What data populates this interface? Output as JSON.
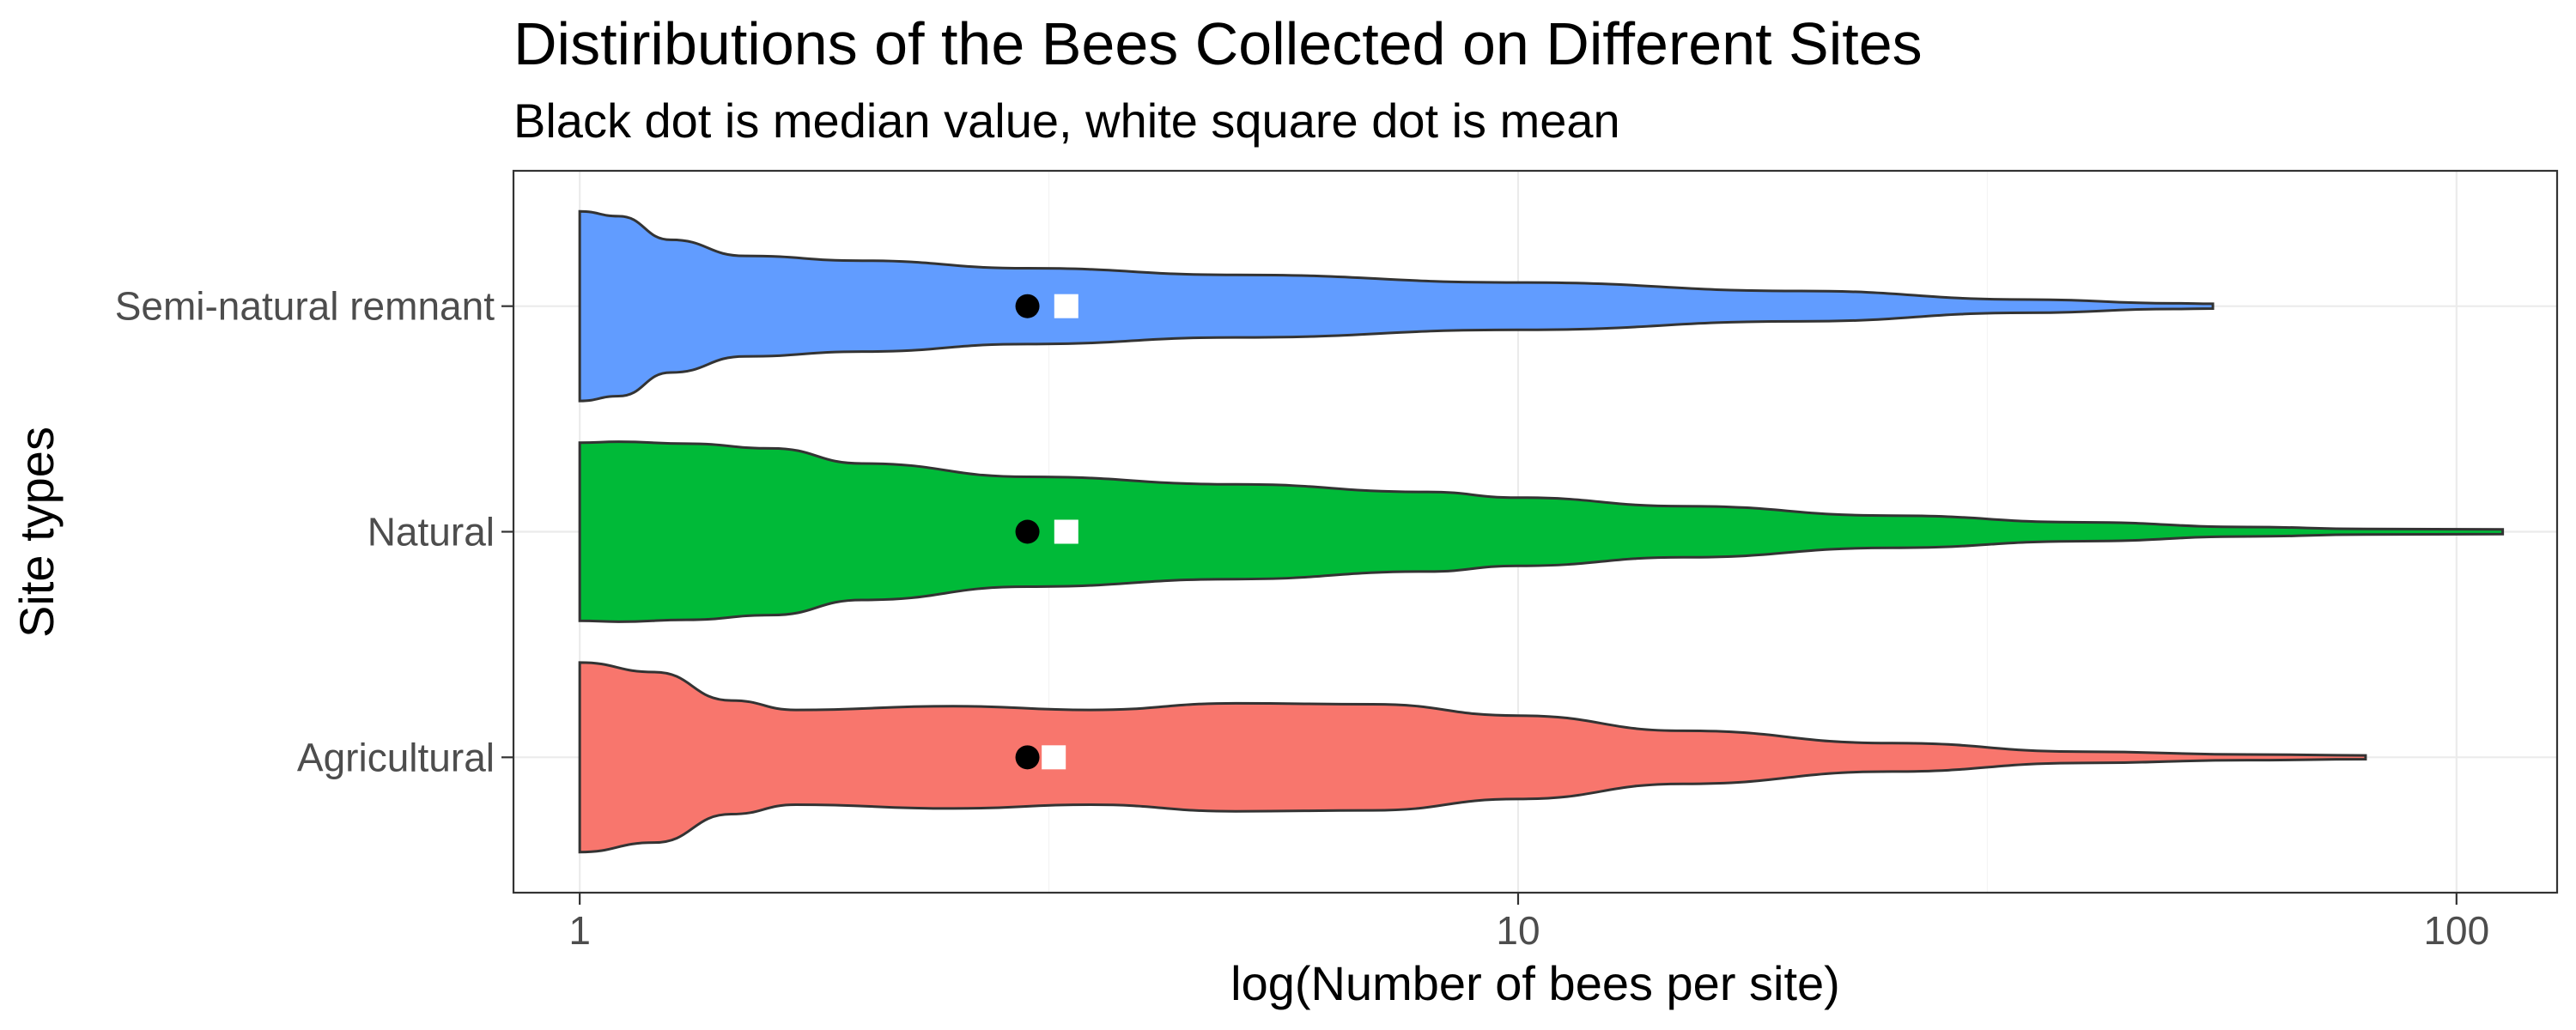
{
  "chart_data": {
    "type": "violin",
    "title": "Distiributions of the Bees Collected on Different Sites",
    "subtitle": "Black dot is median value, white square dot is mean",
    "xlabel": "log(Number of bees per site)",
    "ylabel": "Site types",
    "x_scale": "log10",
    "xlim": [
      0.85,
      128
    ],
    "x_ticks": [
      1,
      10,
      100
    ],
    "x_tick_labels": [
      "1",
      "10",
      "100"
    ],
    "categories": [
      "Semi-natural remnant",
      "Natural",
      "Agricultural"
    ],
    "grid": true,
    "legend": "none",
    "series": [
      {
        "category": "Semi-natural remnant",
        "color": "#619CFF",
        "min": 1,
        "max": 55,
        "median": 3,
        "mean": 3.3,
        "density": [
          [
            1.0,
            1.0
          ],
          [
            1.1,
            0.95
          ],
          [
            1.25,
            0.7
          ],
          [
            1.5,
            0.53
          ],
          [
            2.0,
            0.48
          ],
          [
            3.0,
            0.4
          ],
          [
            5.0,
            0.33
          ],
          [
            10.0,
            0.25
          ],
          [
            20.0,
            0.16
          ],
          [
            35.0,
            0.07
          ],
          [
            50.0,
            0.03
          ],
          [
            55.0,
            0.025
          ]
        ]
      },
      {
        "category": "Natural",
        "color": "#00BA38",
        "min": 1,
        "max": 112,
        "median": 3,
        "mean": 3.3,
        "density": [
          [
            1.0,
            0.94
          ],
          [
            1.1,
            0.95
          ],
          [
            1.3,
            0.93
          ],
          [
            1.6,
            0.88
          ],
          [
            2.0,
            0.72
          ],
          [
            3.0,
            0.58
          ],
          [
            5.0,
            0.5
          ],
          [
            8.0,
            0.42
          ],
          [
            10.0,
            0.36
          ],
          [
            15.0,
            0.27
          ],
          [
            25.0,
            0.17
          ],
          [
            40.0,
            0.1
          ],
          [
            60.0,
            0.05
          ],
          [
            80.0,
            0.03
          ],
          [
            112.0,
            0.025
          ]
        ]
      },
      {
        "category": "Agricultural",
        "color": "#F8766D",
        "min": 1,
        "max": 80,
        "median": 3,
        "mean": 3.2,
        "density": [
          [
            1.0,
            1.0
          ],
          [
            1.2,
            0.9
          ],
          [
            1.45,
            0.6
          ],
          [
            1.7,
            0.5
          ],
          [
            2.5,
            0.54
          ],
          [
            3.5,
            0.5
          ],
          [
            5.0,
            0.57
          ],
          [
            7.0,
            0.56
          ],
          [
            10.0,
            0.44
          ],
          [
            15.0,
            0.28
          ],
          [
            25.0,
            0.15
          ],
          [
            40.0,
            0.06
          ],
          [
            60.0,
            0.03
          ],
          [
            80.0,
            0.02
          ]
        ]
      }
    ]
  }
}
